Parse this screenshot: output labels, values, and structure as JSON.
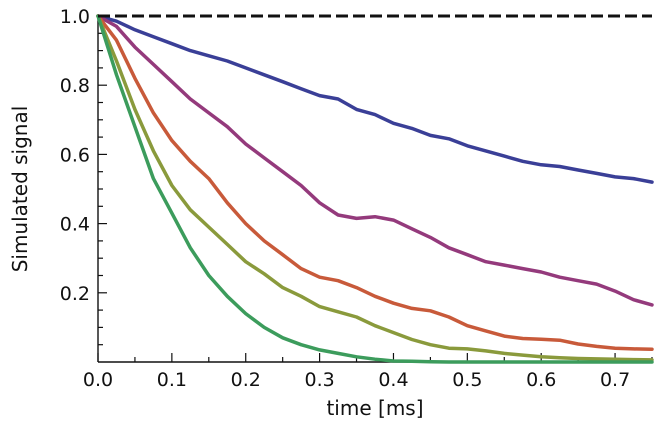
{
  "chart_data": {
    "type": "line",
    "title": "",
    "xlabel": "time [ms]",
    "ylabel": "Simulated signal",
    "xlim": [
      0,
      0.75
    ],
    "ylim": [
      0,
      1.0
    ],
    "xticks": [
      0.0,
      0.1,
      0.2,
      0.3,
      0.4,
      0.5,
      0.6,
      0.7
    ],
    "xtick_labels": [
      "0.0",
      "0.1",
      "0.2",
      "0.3",
      "0.4",
      "0.5",
      "0.6",
      "0.7"
    ],
    "yticks": [
      0.2,
      0.4,
      0.6,
      0.8,
      1.0
    ],
    "ytick_labels": [
      "0.2",
      "0.4",
      "0.6",
      "0.8",
      "1.0"
    ],
    "grid": false,
    "legend": "none",
    "reference_line": {
      "y": 1.0,
      "style": "dashed",
      "color": "#111111"
    },
    "series": [
      {
        "color": "#3a3f97",
        "x": [
          0,
          0.025,
          0.05,
          0.075,
          0.1,
          0.125,
          0.15,
          0.175,
          0.2,
          0.225,
          0.25,
          0.275,
          0.3,
          0.325,
          0.35,
          0.375,
          0.4,
          0.425,
          0.45,
          0.475,
          0.5,
          0.525,
          0.55,
          0.575,
          0.6,
          0.625,
          0.65,
          0.675,
          0.7,
          0.725,
          0.75
        ],
        "y": [
          1.0,
          0.985,
          0.96,
          0.94,
          0.92,
          0.9,
          0.885,
          0.87,
          0.85,
          0.83,
          0.81,
          0.79,
          0.77,
          0.76,
          0.73,
          0.715,
          0.69,
          0.675,
          0.655,
          0.645,
          0.625,
          0.61,
          0.595,
          0.58,
          0.57,
          0.565,
          0.555,
          0.545,
          0.535,
          0.53,
          0.52
        ]
      },
      {
        "color": "#943a7c",
        "x": [
          0,
          0.025,
          0.05,
          0.075,
          0.1,
          0.125,
          0.15,
          0.175,
          0.2,
          0.225,
          0.25,
          0.275,
          0.3,
          0.325,
          0.35,
          0.375,
          0.4,
          0.425,
          0.45,
          0.475,
          0.5,
          0.525,
          0.55,
          0.575,
          0.6,
          0.625,
          0.65,
          0.675,
          0.7,
          0.725,
          0.75
        ],
        "y": [
          1.0,
          0.97,
          0.91,
          0.86,
          0.81,
          0.76,
          0.72,
          0.68,
          0.63,
          0.59,
          0.55,
          0.51,
          0.46,
          0.425,
          0.415,
          0.42,
          0.41,
          0.385,
          0.36,
          0.33,
          0.31,
          0.29,
          0.28,
          0.27,
          0.26,
          0.245,
          0.235,
          0.225,
          0.205,
          0.18,
          0.165
        ]
      },
      {
        "color": "#c85a3a",
        "x": [
          0,
          0.025,
          0.05,
          0.075,
          0.1,
          0.125,
          0.15,
          0.175,
          0.2,
          0.225,
          0.25,
          0.275,
          0.3,
          0.325,
          0.35,
          0.375,
          0.4,
          0.425,
          0.45,
          0.475,
          0.5,
          0.525,
          0.55,
          0.575,
          0.6,
          0.625,
          0.65,
          0.675,
          0.7,
          0.725,
          0.75
        ],
        "y": [
          1.0,
          0.93,
          0.82,
          0.72,
          0.64,
          0.58,
          0.53,
          0.46,
          0.4,
          0.35,
          0.31,
          0.27,
          0.245,
          0.235,
          0.215,
          0.19,
          0.17,
          0.155,
          0.148,
          0.13,
          0.105,
          0.09,
          0.075,
          0.068,
          0.066,
          0.063,
          0.052,
          0.045,
          0.04,
          0.038,
          0.037
        ]
      },
      {
        "color": "#8a9a3c",
        "x": [
          0,
          0.025,
          0.05,
          0.075,
          0.1,
          0.125,
          0.15,
          0.175,
          0.2,
          0.225,
          0.25,
          0.275,
          0.3,
          0.325,
          0.35,
          0.375,
          0.4,
          0.425,
          0.45,
          0.475,
          0.5,
          0.525,
          0.55,
          0.575,
          0.6,
          0.625,
          0.65,
          0.675,
          0.7,
          0.725,
          0.75
        ],
        "y": [
          1.0,
          0.87,
          0.73,
          0.61,
          0.51,
          0.44,
          0.39,
          0.34,
          0.29,
          0.255,
          0.215,
          0.19,
          0.16,
          0.145,
          0.13,
          0.105,
          0.085,
          0.065,
          0.05,
          0.04,
          0.038,
          0.032,
          0.025,
          0.02,
          0.015,
          0.012,
          0.01,
          0.009,
          0.008,
          0.007,
          0.006
        ]
      },
      {
        "color": "#3c9c5c",
        "x": [
          0,
          0.025,
          0.05,
          0.075,
          0.1,
          0.125,
          0.15,
          0.175,
          0.2,
          0.225,
          0.25,
          0.275,
          0.3,
          0.325,
          0.35,
          0.375,
          0.4,
          0.425,
          0.45,
          0.475,
          0.5,
          0.55,
          0.6,
          0.65,
          0.7,
          0.75
        ],
        "y": [
          1.0,
          0.83,
          0.68,
          0.53,
          0.43,
          0.33,
          0.25,
          0.19,
          0.14,
          0.1,
          0.07,
          0.05,
          0.035,
          0.025,
          0.015,
          0.008,
          0.003,
          0.002,
          0.001,
          0.0,
          0.0,
          0.0,
          0.0,
          0.0,
          0.0,
          0.0
        ]
      }
    ]
  }
}
